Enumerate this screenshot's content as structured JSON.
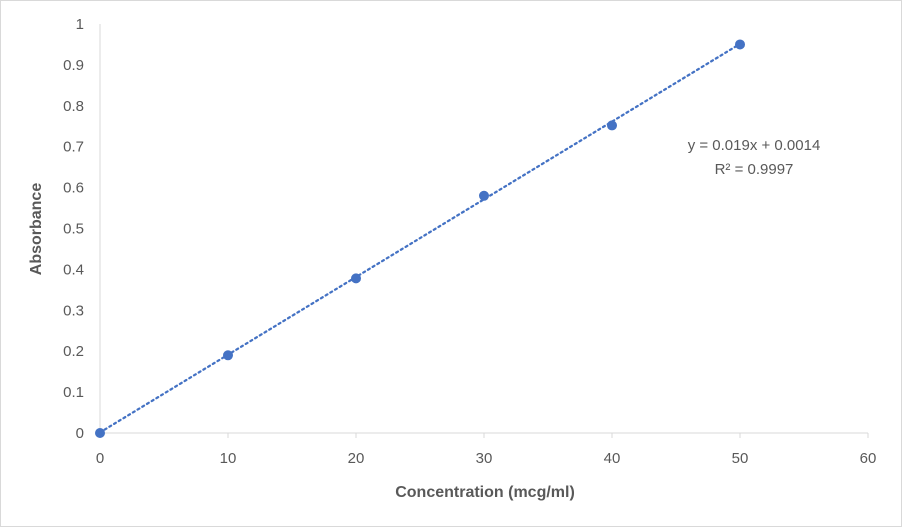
{
  "chart_data": {
    "type": "scatter",
    "title": "",
    "xlabel": "Concentration (mcg/ml)",
    "ylabel": "Absorbance",
    "xlim": [
      0,
      60
    ],
    "ylim": [
      0,
      1
    ],
    "xticks": [
      0,
      10,
      20,
      30,
      40,
      50,
      60
    ],
    "yticks": [
      0,
      0.1,
      0.2,
      0.3,
      0.4,
      0.5,
      0.6,
      0.7,
      0.8,
      0.9,
      1
    ],
    "grid": false,
    "legend": "none",
    "series": [
      {
        "x": [
          0,
          10,
          20,
          30,
          40,
          50
        ],
        "y": [
          0,
          0.19,
          0.378,
          0.58,
          0.752,
          0.95
        ],
        "color": "#4472c4",
        "marker": "circle"
      }
    ],
    "trendline": {
      "type": "linear",
      "slope": 0.019,
      "intercept": 0.0014,
      "style": "dotted",
      "color": "#4472c4",
      "equation_text": "y = 0.019x + 0.0014",
      "r2_text": "R² = 0.9997"
    }
  }
}
